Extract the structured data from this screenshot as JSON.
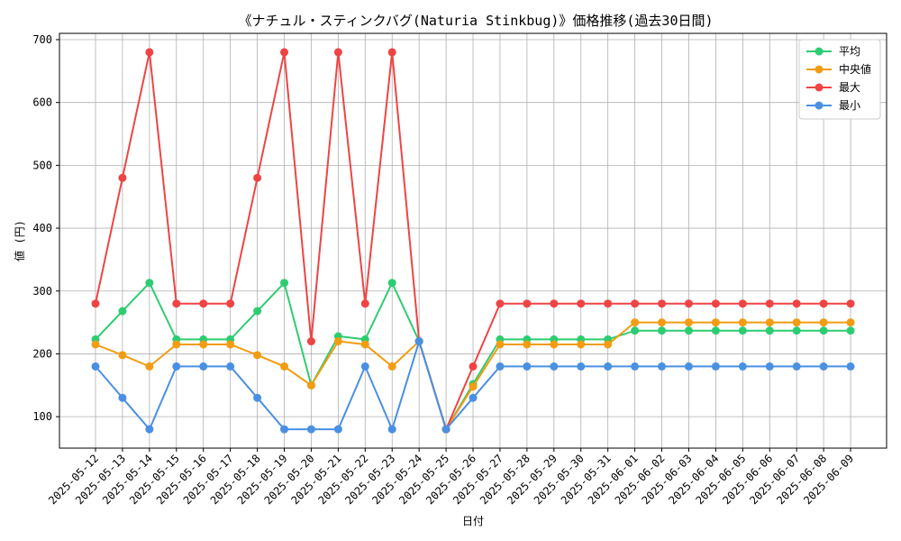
{
  "chart_data": {
    "type": "line",
    "title": "《ナチュル・スティンクバグ(Naturia Stinkbug)》価格推移(過去30日間)",
    "xlabel": "日付",
    "ylabel": "値 (円)",
    "ylim": [
      50,
      710
    ],
    "yticks": [
      100,
      200,
      300,
      400,
      500,
      600,
      700
    ],
    "grid": true,
    "legend_position": "top-right",
    "categories": [
      "2025-05-12",
      "2025-05-13",
      "2025-05-14",
      "2025-05-15",
      "2025-05-16",
      "2025-05-17",
      "2025-05-18",
      "2025-05-19",
      "2025-05-20",
      "2025-05-21",
      "2025-05-22",
      "2025-05-23",
      "2025-05-24",
      "2025-05-25",
      "2025-05-26",
      "2025-05-27",
      "2025-05-28",
      "2025-05-29",
      "2025-05-30",
      "2025-05-31",
      "2025-06-01",
      "2025-06-02",
      "2025-06-03",
      "2025-06-04",
      "2025-06-05",
      "2025-06-06",
      "2025-06-07",
      "2025-06-08",
      "2025-06-09"
    ],
    "series": [
      {
        "name": "平均",
        "color": "#2ecc71",
        "values": [
          223,
          268,
          313,
          223,
          223,
          223,
          268,
          313,
          150,
          228,
          223,
          313,
          220,
          80,
          152,
          223,
          223,
          223,
          223,
          223,
          237,
          237,
          237,
          237,
          237,
          237,
          237,
          237,
          237
        ]
      },
      {
        "name": "中央値",
        "color": "#f39c12",
        "values": [
          215,
          198,
          180,
          215,
          215,
          215,
          198,
          180,
          150,
          220,
          215,
          180,
          220,
          80,
          148,
          215,
          215,
          215,
          215,
          215,
          250,
          250,
          250,
          250,
          250,
          250,
          250,
          250,
          250
        ]
      },
      {
        "name": "最大",
        "color": "#ef4444",
        "values": [
          280,
          480,
          680,
          280,
          280,
          280,
          480,
          680,
          220,
          680,
          280,
          680,
          220,
          80,
          180,
          280,
          280,
          280,
          280,
          280,
          280,
          280,
          280,
          280,
          280,
          280,
          280,
          280,
          280
        ]
      },
      {
        "name": "最小",
        "color": "#4a90e2",
        "values": [
          180,
          130,
          80,
          180,
          180,
          180,
          130,
          80,
          80,
          80,
          180,
          80,
          220,
          80,
          130,
          180,
          180,
          180,
          180,
          180,
          180,
          180,
          180,
          180,
          180,
          180,
          180,
          180,
          180
        ]
      }
    ]
  }
}
